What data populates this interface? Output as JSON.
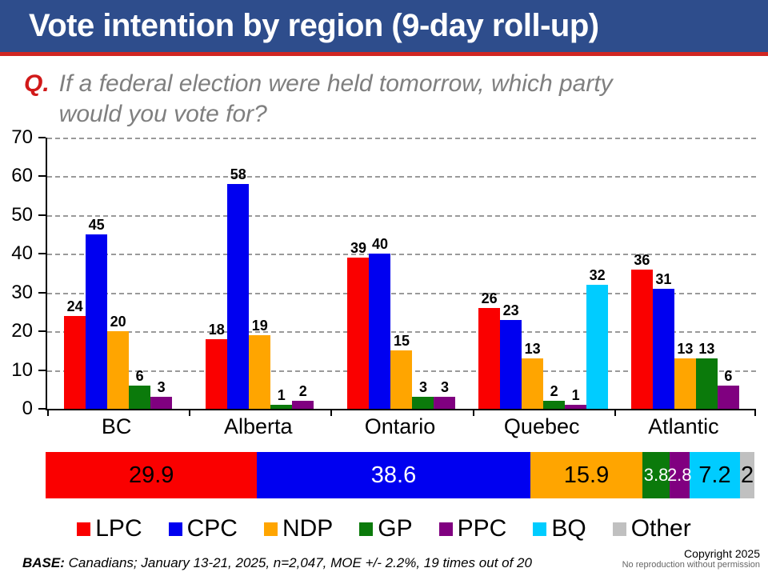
{
  "header": {
    "title": "Vote intention by region (9-day roll-up)"
  },
  "question": {
    "prefix": "Q.",
    "line1": "If a federal election were held tomorrow, which party",
    "line2": "would you vote for?"
  },
  "colors": {
    "banner_blue": "#2E4D8C",
    "banner_red_line": "#D02622",
    "question_gray": "#7F7F7F",
    "gridline_gray": "#9a9a9a"
  },
  "parties": [
    {
      "code": "LPC",
      "color": "#FA0000",
      "stacked_label_color": "#000000",
      "small_label": false
    },
    {
      "code": "CPC",
      "color": "#0000F0",
      "stacked_label_color": "#FFFFFF",
      "small_label": false
    },
    {
      "code": "NDP",
      "color": "#FFA500",
      "stacked_label_color": "#000000",
      "small_label": false
    },
    {
      "code": "GP",
      "color": "#0B7A0B",
      "stacked_label_color": "#FFFFFF",
      "small_label": true
    },
    {
      "code": "PPC",
      "color": "#800080",
      "stacked_label_color": "#FFFFFF",
      "small_label": true
    },
    {
      "code": "BQ",
      "color": "#00CCFF",
      "stacked_label_color": "#000000",
      "small_label": false
    },
    {
      "code": "Other",
      "color": "#C0C0C0",
      "stacked_label_color": "#000000",
      "small_label": false
    }
  ],
  "chart_data": [
    {
      "type": "bar",
      "title": "Vote intention by region (9-day roll-up)",
      "categories": [
        "BC",
        "Alberta",
        "Ontario",
        "Quebec",
        "Atlantic"
      ],
      "series": [
        {
          "name": "LPC",
          "values": [
            24,
            18,
            39,
            26,
            36
          ]
        },
        {
          "name": "CPC",
          "values": [
            45,
            58,
            40,
            23,
            31
          ]
        },
        {
          "name": "NDP",
          "values": [
            20,
            19,
            15,
            13,
            13
          ]
        },
        {
          "name": "GP",
          "values": [
            6,
            1,
            3,
            2,
            13
          ]
        },
        {
          "name": "PPC",
          "values": [
            3,
            2,
            3,
            1,
            6
          ]
        },
        {
          "name": "BQ",
          "values": [
            null,
            null,
            null,
            32,
            null
          ]
        }
      ],
      "xlabel": "",
      "ylabel": "",
      "ylim": [
        0,
        70
      ],
      "yticks": [
        0,
        10,
        20,
        30,
        40,
        50,
        60,
        70
      ],
      "grid": "horizontal-dashed",
      "value_labels": true,
      "legend_position": "bottom"
    },
    {
      "type": "bar",
      "subtype": "horizontal-stacked-total",
      "segments": [
        {
          "name": "LPC",
          "value": 29.9
        },
        {
          "name": "CPC",
          "value": 38.6
        },
        {
          "name": "NDP",
          "value": 15.9
        },
        {
          "name": "GP",
          "value": 3.8
        },
        {
          "name": "PPC",
          "value": 2.8
        },
        {
          "name": "BQ",
          "value": 7.2
        },
        {
          "name": "Other",
          "value": 2
        }
      ]
    }
  ],
  "legend_items": [
    "LPC",
    "CPC",
    "NDP",
    "GP",
    "PPC",
    "BQ",
    "Other"
  ],
  "footer": {
    "base_label": "BASE:",
    "base_text": "Canadians; January 13-21, 2025, n=2,047, MOE +/- 2.2%, 19 times out of 20",
    "copyright_line1": "Copyright 2025",
    "copyright_line2": "No reproduction without permission"
  }
}
